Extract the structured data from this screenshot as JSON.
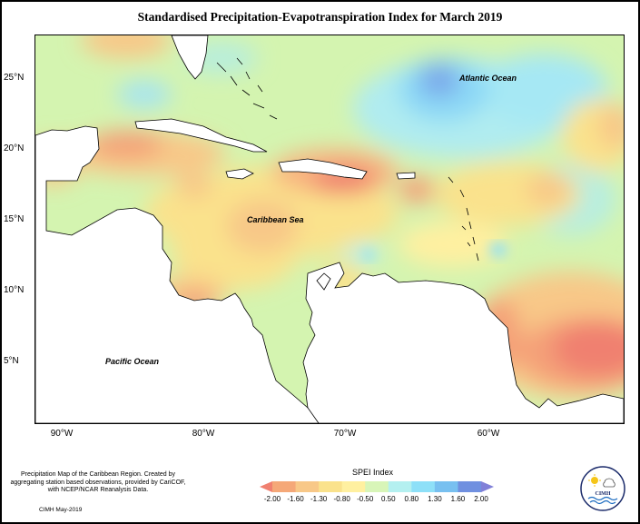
{
  "title": "Standardised Precipitation-Evapotranspiration Index for March 2019",
  "lat_labels": [
    "25°N",
    "20°N",
    "15°N",
    "10°N",
    "5°N"
  ],
  "lon_labels": [
    "90°W",
    "80°W",
    "70°W",
    "60°W"
  ],
  "places": {
    "atlantic": "Atlantic Ocean",
    "caribbean": "Caribbean Sea",
    "pacific": "Pacific Ocean"
  },
  "credit": "Precipitation Map of the Caribbean Region. Created by aggregating station based observations, provided by CariCOF, with NCEP/NCAR Reanalysis Data.",
  "date": "CIMH May-2019",
  "legend": {
    "title": "SPEI Index",
    "ticks": [
      "-2.00",
      "-1.60",
      "-1.30",
      "-0.80",
      "-0.50",
      "0.50",
      "0.80",
      "1.30",
      "1.60",
      "2.00"
    ],
    "colors": [
      "#f08070",
      "#f5a878",
      "#f8c888",
      "#fae28c",
      "#fff0a0",
      "#d8f5b8",
      "#b4f0f0",
      "#8ee0f8",
      "#78c0f0",
      "#7090e0",
      "#8080d8"
    ]
  },
  "logo_text": "CIMH"
}
